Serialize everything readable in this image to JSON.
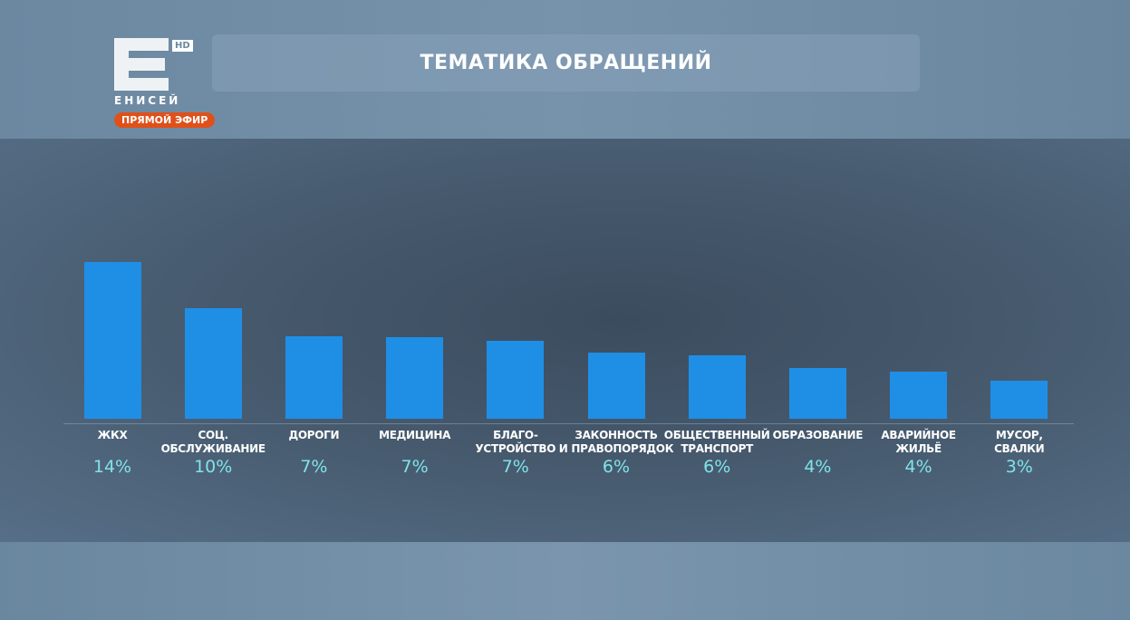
{
  "header": {
    "title": "ТЕМАТИКА ОБРАЩЕНИЙ"
  },
  "logo": {
    "hd": "HD",
    "brand": "ЕНИСЕЙ",
    "live_badge": "ПРЯМОЙ ЭФИР"
  },
  "colors": {
    "bar": "#1f8fe6",
    "value_text": "#7fe3ea",
    "live_badge": "#e0501a"
  },
  "chart_data": {
    "type": "bar",
    "title": "ТЕМАТИКА ОБРАЩЕНИЙ",
    "categories": [
      "ЖКХ",
      "СОЦ.\nОБСЛУЖИВАНИЕ",
      "ДОРОГИ",
      "МЕДИЦИНА",
      "БЛАГО-\nУСТРОЙСТВО",
      "ЗАКОННОСТЬ\nИ ПРАВОПОРЯДОК",
      "ОБЩЕСТВЕННЫЙ\nТРАНСПОРТ",
      "ОБРАЗОВАНИЕ",
      "АВАРИЙНОЕ\nЖИЛЬЁ",
      "МУСОР,\nСВАЛКИ"
    ],
    "labels": [
      "14%",
      "10%",
      "7%",
      "7%",
      "7%",
      "6%",
      "6%",
      "4%",
      "4%",
      "3%"
    ],
    "values": [
      14,
      9.9,
      7.4,
      7.3,
      7.0,
      5.9,
      5.7,
      4.5,
      4.2,
      3.4
    ],
    "unit": "%",
    "ylim": [
      0,
      14
    ],
    "grid": false,
    "xlabel": "",
    "ylabel": ""
  }
}
